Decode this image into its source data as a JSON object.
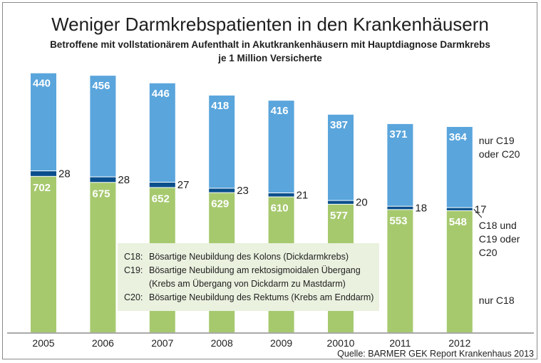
{
  "chart_data": {
    "type": "bar",
    "stacked": true,
    "title": "Weniger Darmkrebspatienten in den Krankenhäusern",
    "subtitle": [
      "Betroffene mit vollstationärem Aufenthalt in Akutkrankenhäusern mit Hauptdiagnose Darmkrebs",
      "je 1 Million Versicherte"
    ],
    "categories": [
      "2005",
      "2006",
      "2007",
      "2008",
      "2009",
      "20010",
      "2011",
      "2012"
    ],
    "series": [
      {
        "name": "nur C18",
        "values": [
          702,
          675,
          652,
          629,
          610,
          577,
          553,
          548
        ],
        "color": "#a6c96e"
      },
      {
        "name": "C18 und C19 oder C20",
        "values": [
          28,
          28,
          27,
          23,
          21,
          20,
          18,
          17
        ],
        "color": "#0a4f8c"
      },
      {
        "name": "nur C19 oder C20",
        "values": [
          440,
          456,
          446,
          418,
          416,
          387,
          371,
          364
        ],
        "color": "#5aa5dc"
      }
    ],
    "series_labels": [
      {
        "series": 2,
        "lines": [
          "nur C19",
          "oder C20"
        ]
      },
      {
        "series": 1,
        "lines": [
          "C18 und",
          "C19 oder",
          "C20"
        ]
      },
      {
        "series": 0,
        "lines": [
          "nur C18"
        ]
      }
    ],
    "legend_box": [
      {
        "code": "C18:",
        "text": "Bösartige Neubildung des Kolons (Dickdarmkrebs)"
      },
      {
        "code": "C19:",
        "text": "Bösartige Neubildung am rektosigmoidalen Übergang"
      },
      {
        "code": "",
        "text": "(Krebs am Übergang von Dickdarm zu Mastdarm)"
      },
      {
        "code": "C20:",
        "text": "Bösartige Neubildung des Rektums (Krebs am Enddarm)"
      }
    ],
    "source": "Quelle: BARMER GEK Report Krankenhaus 2013",
    "ylim": [
      0,
      1200
    ],
    "grid": false,
    "accent_colors": {
      "light_green": "#a6c96e",
      "dark_blue": "#0a4f8c",
      "light_blue": "#5aa5dc",
      "legend_bg": "#eaf1df"
    }
  }
}
